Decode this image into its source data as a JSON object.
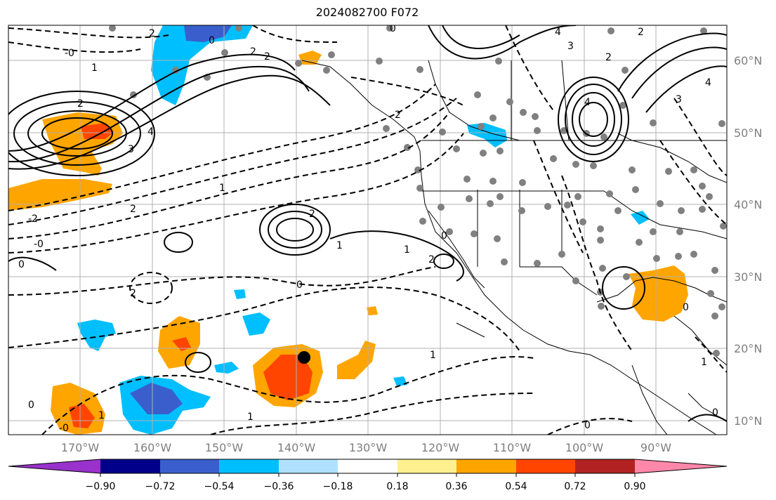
{
  "title": "2024082700 F072",
  "latitude_labels": [
    "60°N",
    "50°N",
    "40°N",
    "30°N",
    "20°N",
    "10°N"
  ],
  "longitude_labels": [
    "170°W",
    "160°W",
    "150°W",
    "140°W",
    "130°W",
    "120°W",
    "110°W",
    "100°W",
    "90°W"
  ],
  "colorbar": {
    "tick_labels": [
      "−0.90",
      "−0.72",
      "−0.54",
      "−0.36",
      "−0.18",
      "0.18",
      "0.36",
      "0.54",
      "0.72",
      "0.90"
    ],
    "colors": [
      "#9932cc",
      "#00008b",
      "#3a5fcd",
      "#00bfff",
      "#b0e2ff",
      "#ffffff",
      "#fff08f",
      "#ffa500",
      "#ff4500",
      "#b22222",
      "#ff88aa"
    ]
  },
  "contour_labels": [
    "-0",
    "2",
    "0",
    "2",
    "2",
    "1",
    "2",
    "4",
    "3",
    "4",
    "0",
    "2",
    "2",
    "1",
    "-2",
    "-0",
    "0",
    "2",
    "2",
    "1",
    "0",
    "2",
    "1",
    "0",
    "1",
    "1",
    "1",
    "0",
    "0",
    "-0",
    "2",
    "4",
    "3",
    "2",
    "4",
    "3",
    "0",
    "1",
    "0"
  ],
  "storm_marker": "black-dot",
  "colors": {
    "axis_label": "#7f7f7f",
    "coastline": "#000000",
    "station_dot": "#808080"
  }
}
